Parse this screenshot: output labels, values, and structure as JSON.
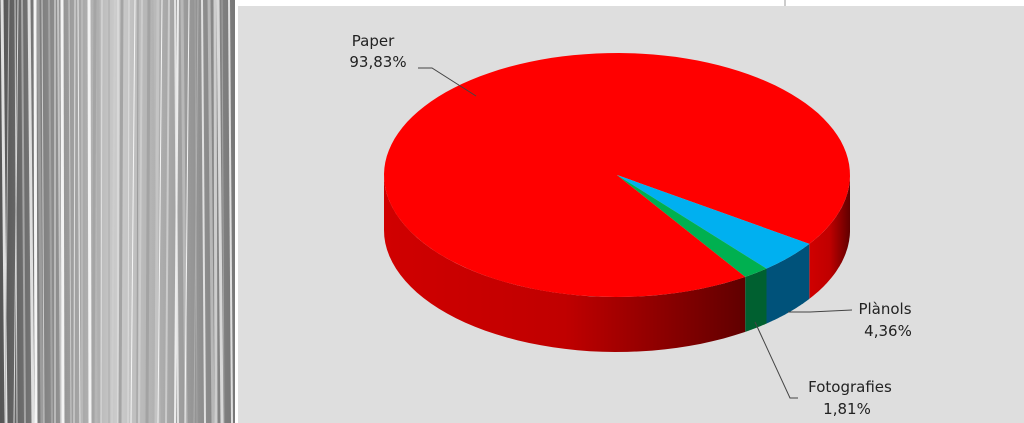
{
  "chart_data": {
    "type": "pie",
    "categories": [
      "Paper",
      "Plànols",
      "Fotografies"
    ],
    "values": [
      93.83,
      4.36,
      1.81
    ],
    "value_labels": [
      "93,83%",
      "4,36%",
      "1,81%"
    ],
    "colors": [
      "#ff0000",
      "#00b0f0",
      "#00b050"
    ]
  }
}
